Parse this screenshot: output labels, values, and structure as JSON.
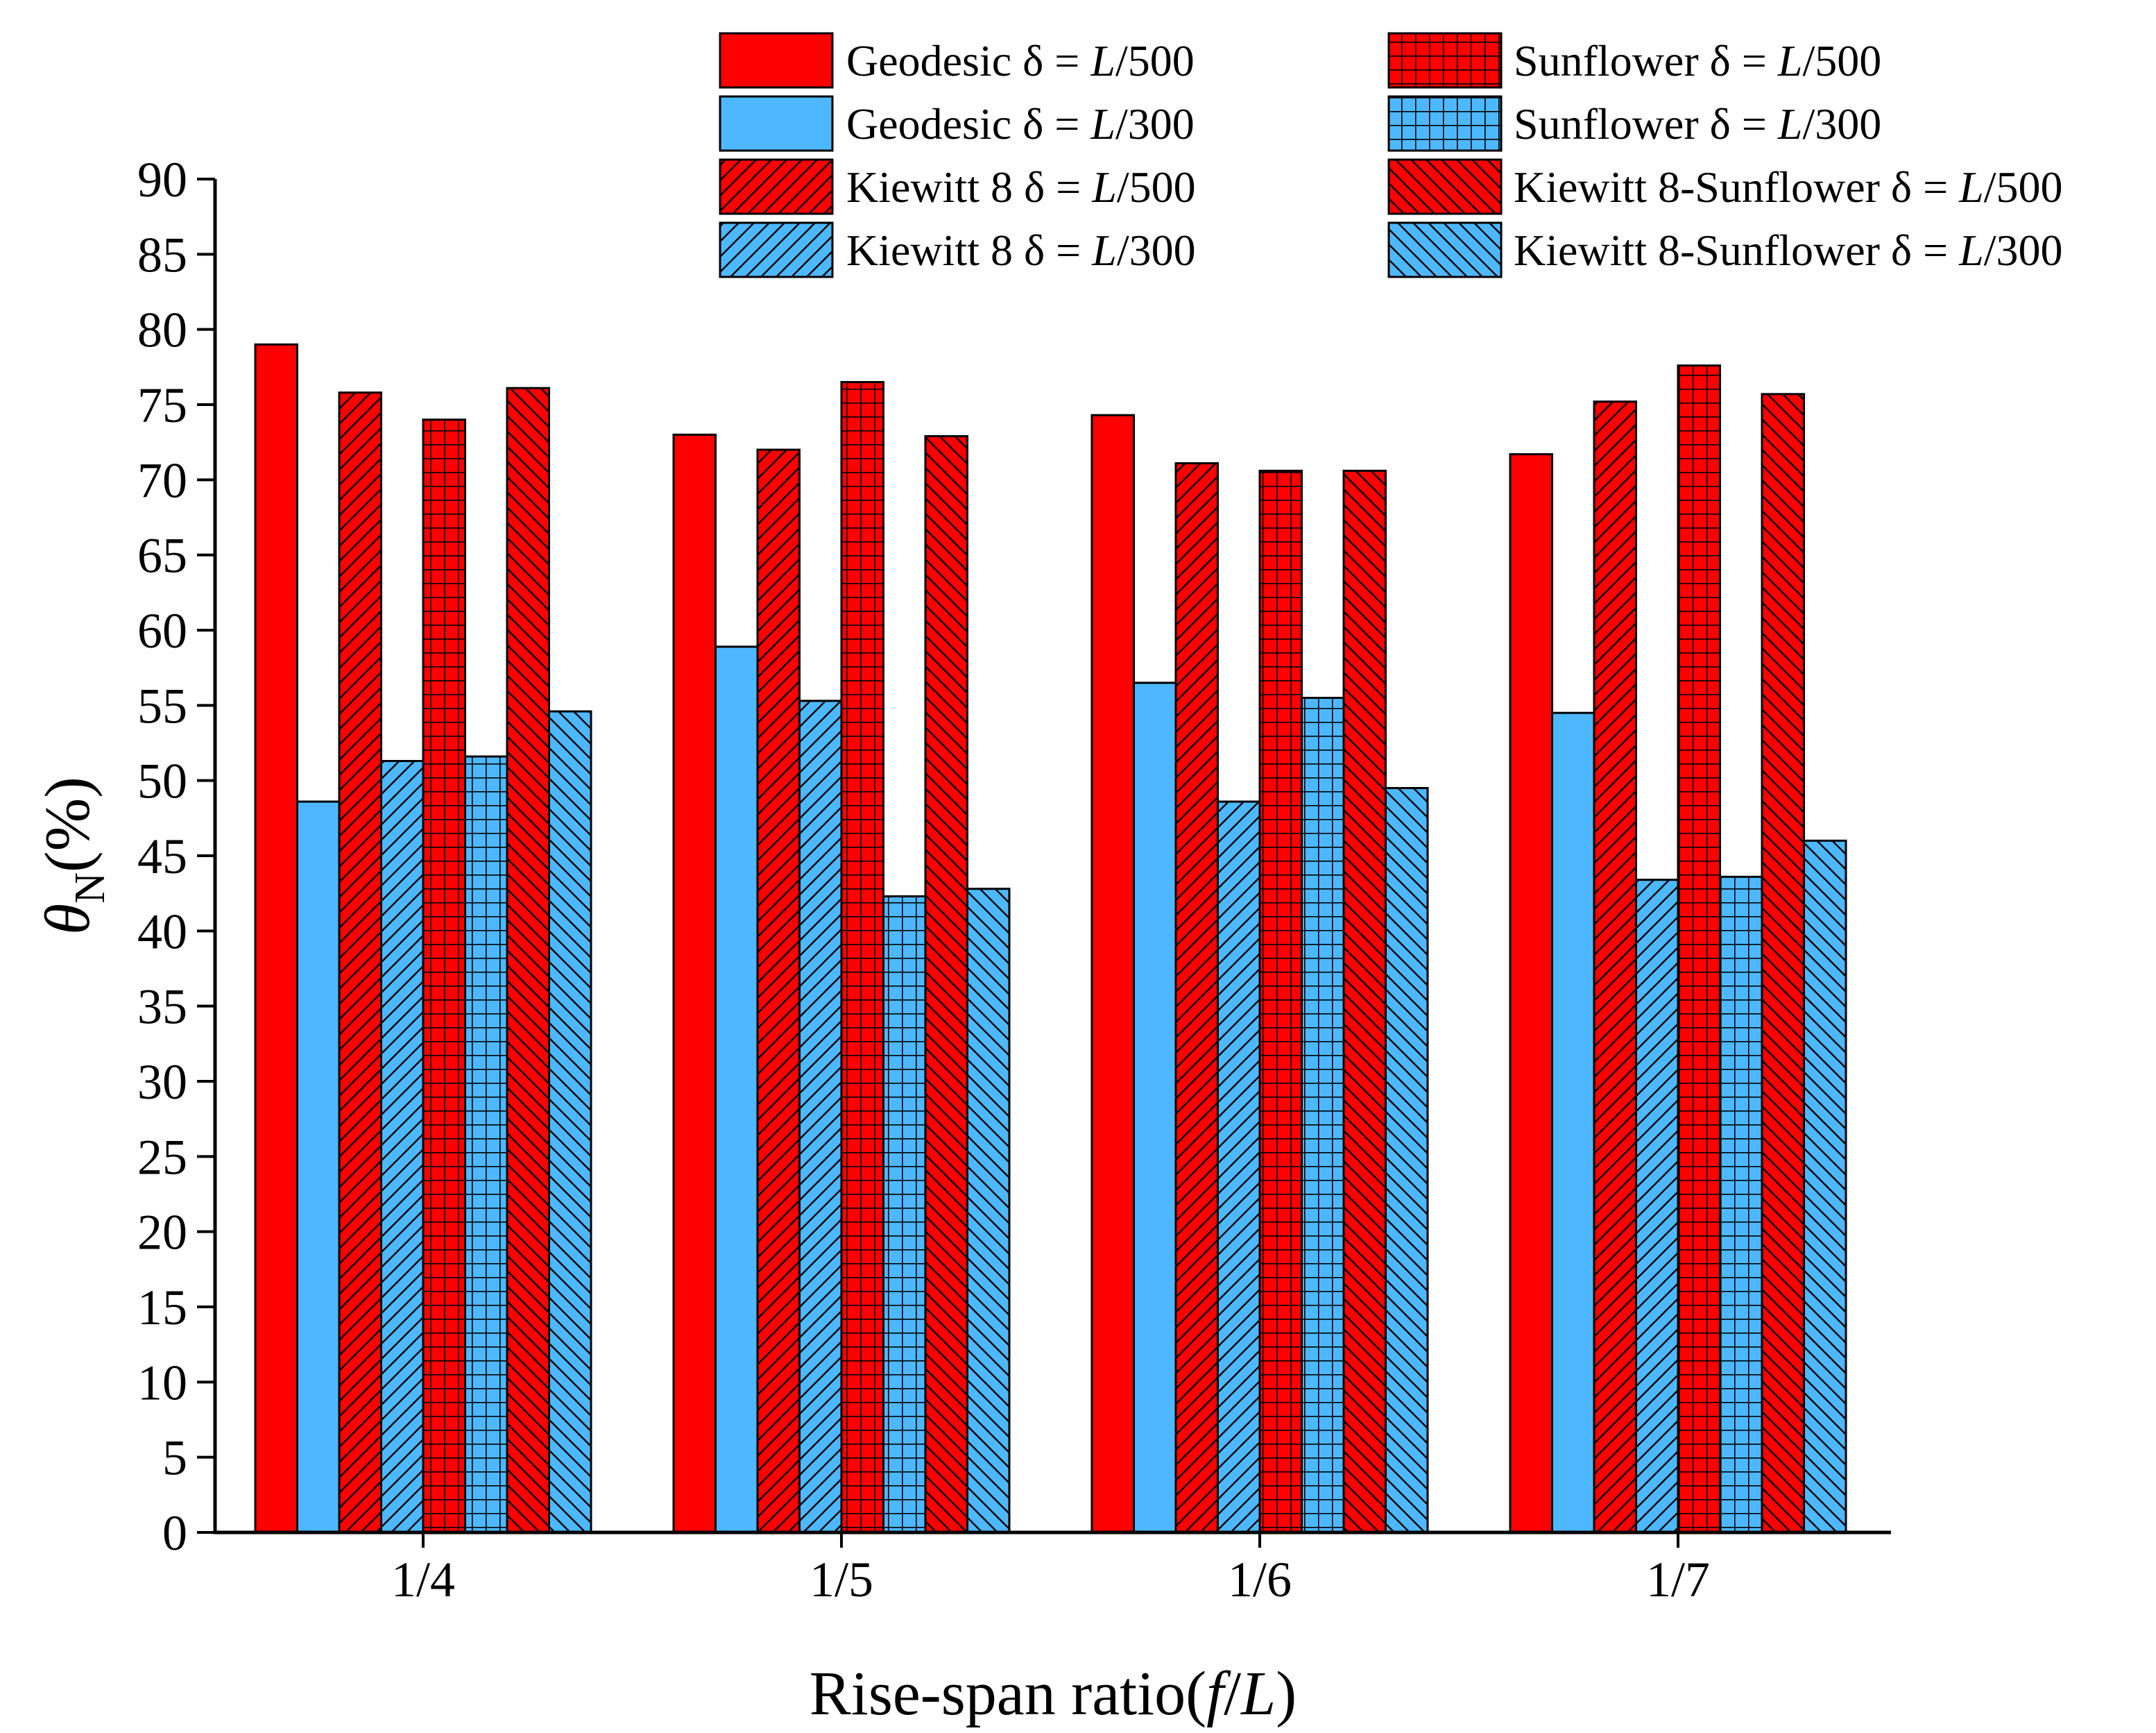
{
  "chart_data": {
    "type": "bar",
    "title": "",
    "xlabel": "Rise-span ratio(f/L)",
    "xlabel_parts": {
      "prefix": "Rise-span ratio(",
      "f": "f",
      "slash": "/",
      "L": "L",
      "suffix": ")"
    },
    "ylabel": "θN(%)",
    "ylabel_parts": {
      "theta": "θ",
      "sub": "N",
      "unit": "(%)"
    },
    "ylim": [
      0,
      90
    ],
    "ytick_step": 5,
    "yticks": [
      "0",
      "5",
      "10",
      "15",
      "20",
      "25",
      "30",
      "35",
      "40",
      "45",
      "50",
      "55",
      "60",
      "65",
      "70",
      "75",
      "80",
      "85",
      "90"
    ],
    "categories": [
      "1/4",
      "1/5",
      "1/6",
      "1/7"
    ],
    "legend_position": "top",
    "series": [
      {
        "name": "Geodesic δ = L/500",
        "prefix": "Geodesic δ = ",
        "L": "L",
        "suffix": "/500",
        "color": "#ff0000",
        "pattern": "solid",
        "values": [
          79.0,
          73.0,
          74.3,
          71.7
        ]
      },
      {
        "name": "Geodesic δ = L/300",
        "prefix": "Geodesic δ = ",
        "L": "L",
        "suffix": "/300",
        "color": "#4db8ff",
        "pattern": "solid",
        "values": [
          48.6,
          58.9,
          56.5,
          54.5
        ]
      },
      {
        "name": "Kiewitt 8 δ = L/500",
        "prefix": "Kiewitt 8 δ = ",
        "L": "L",
        "suffix": "/500",
        "color": "#ff0000",
        "pattern": "fdiag",
        "values": [
          75.8,
          72.0,
          71.1,
          75.2
        ]
      },
      {
        "name": "Kiewitt 8 δ = L/300",
        "prefix": "Kiewitt 8 δ = ",
        "L": "L",
        "suffix": "/300",
        "color": "#4db8ff",
        "pattern": "fdiag",
        "values": [
          51.3,
          55.3,
          48.6,
          43.4
        ]
      },
      {
        "name": "Sunflower δ = L/500",
        "prefix": "Sunflower δ = ",
        "L": "L",
        "suffix": "/500",
        "color": "#ff0000",
        "pattern": "grid",
        "values": [
          74.0,
          76.5,
          70.6,
          77.6
        ]
      },
      {
        "name": "Sunflower δ = L/300",
        "prefix": "Sunflower δ = ",
        "L": "L",
        "suffix": "/300",
        "color": "#4db8ff",
        "pattern": "grid",
        "values": [
          51.6,
          42.3,
          55.5,
          43.6
        ]
      },
      {
        "name": "Kiewitt 8-Sunflower δ = L/500",
        "prefix": "Kiewitt 8-Sunflower δ = ",
        "L": "L",
        "suffix": "/500",
        "color": "#ff0000",
        "pattern": "bdiag",
        "values": [
          76.1,
          72.9,
          70.6,
          75.7
        ]
      },
      {
        "name": "Kiewitt 8-Sunflower δ = L/300",
        "prefix": "Kiewitt 8-Sunflower δ = ",
        "L": "L",
        "suffix": "/300",
        "color": "#4db8ff",
        "pattern": "bdiag",
        "values": [
          54.6,
          42.8,
          49.5,
          46.0
        ]
      }
    ]
  }
}
